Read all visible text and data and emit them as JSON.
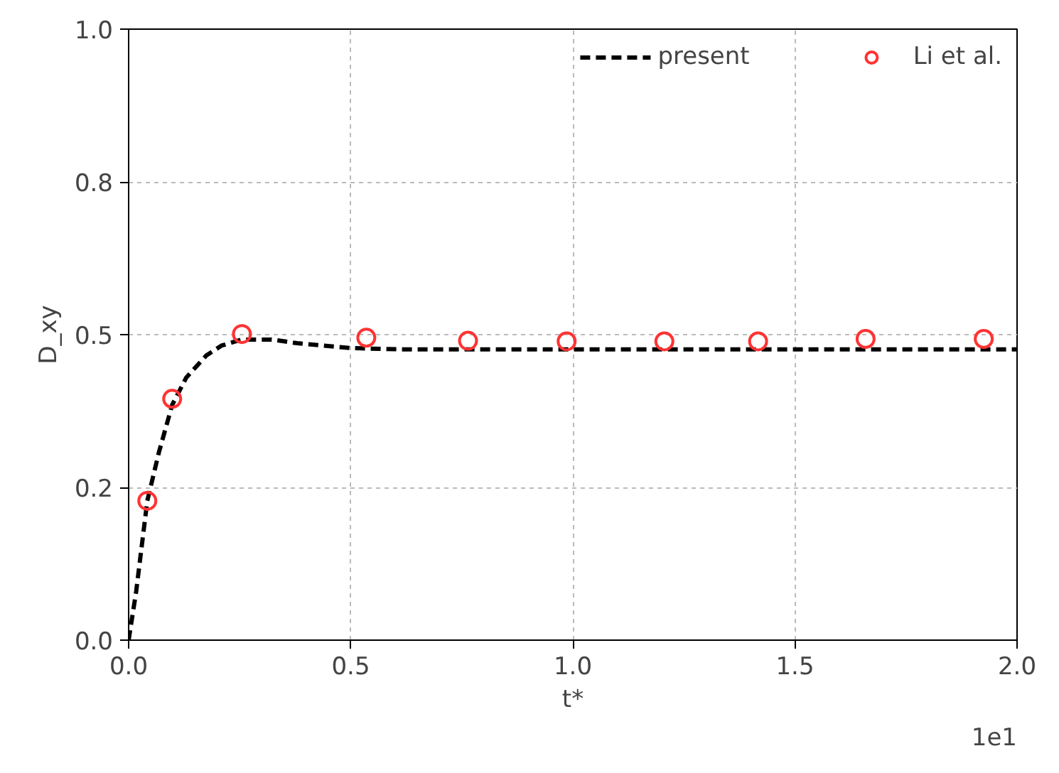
{
  "chart_data": {
    "type": "line",
    "xlabel": "t*",
    "ylabel": "D_xy",
    "annotations": [
      "1e1"
    ],
    "xlim": [
      0,
      2
    ],
    "ylim": [
      0,
      1
    ],
    "xticks": [
      {
        "value": 0,
        "label": "0.0"
      },
      0.5,
      {
        "value": 1,
        "label": "1.0"
      },
      1.5,
      {
        "value": 2,
        "label": "2.0"
      }
    ],
    "yticks": [
      {
        "value": 0,
        "label": "0.0"
      },
      {
        "value": 0.25,
        "label": "0.2"
      },
      0.5,
      {
        "value": 0.75,
        "label": "0.8"
      },
      {
        "value": 1,
        "label": "1.0"
      }
    ],
    "grid": true,
    "legend": "top right",
    "series": [
      {
        "name": "present",
        "line_style": "dashed",
        "color": "#000000",
        "x": [
          0,
          0.017,
          0.042,
          0.068,
          0.098,
          0.13,
          0.175,
          0.209,
          0.255,
          0.322,
          0.379,
          0.5,
          0.605,
          1.0,
          1.5,
          2.0
        ],
        "values": [
          0,
          0.08,
          0.228,
          0.307,
          0.385,
          0.43,
          0.466,
          0.482,
          0.492,
          0.492,
          0.486,
          0.478,
          0.476,
          0.476,
          0.476,
          0.476
        ]
      },
      {
        "name": "Li et al.",
        "type": "scatter",
        "marker": "circle",
        "color": "#ff3333",
        "x": [
          0.042,
          0.098,
          0.255,
          0.535,
          0.764,
          0.986,
          1.206,
          1.417,
          1.659,
          1.925
        ],
        "values": [
          0.228,
          0.395,
          0.501,
          0.495,
          0.49,
          0.489,
          0.489,
          0.489,
          0.493,
          0.493
        ]
      }
    ]
  }
}
